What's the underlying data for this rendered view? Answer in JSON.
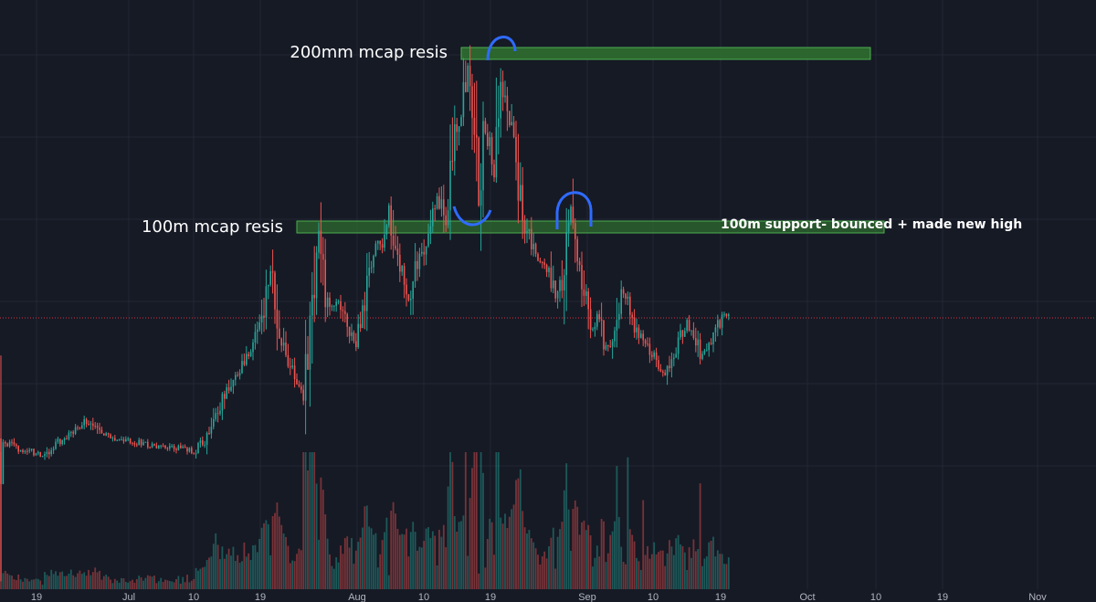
{
  "chart_data": {
    "type": "candlestick",
    "title": "",
    "xlabel": "",
    "ylabel": "",
    "grid": true,
    "x_tick_labels": [
      "19",
      "Jul",
      "10",
      "19",
      "Aug",
      "10",
      "19",
      "Sep",
      "10",
      "19",
      "Oct",
      "10",
      "19",
      "Nov"
    ],
    "annotations": {
      "resistance_200": "200mm mcap resis",
      "resistance_100": "100m mcap resis",
      "support_100": "100m support- bounced + made new high"
    },
    "price_path": [
      [
        0,
        480
      ],
      [
        16,
        490
      ],
      [
        32,
        494
      ],
      [
        48,
        498
      ],
      [
        64,
        484
      ],
      [
        80,
        472
      ],
      [
        94,
        460
      ],
      [
        110,
        476
      ],
      [
        130,
        480
      ],
      [
        150,
        484
      ],
      [
        170,
        488
      ],
      [
        190,
        490
      ],
      [
        212,
        494
      ],
      [
        226,
        480
      ],
      [
        236,
        455
      ],
      [
        246,
        430
      ],
      [
        256,
        412
      ],
      [
        266,
        398
      ],
      [
        276,
        382
      ],
      [
        286,
        352
      ],
      [
        296,
        296
      ],
      [
        306,
        362
      ],
      [
        314,
        392
      ],
      [
        322,
        410
      ],
      [
        332,
        430
      ],
      [
        340,
        358
      ],
      [
        348,
        248
      ],
      [
        356,
        322
      ],
      [
        364,
        340
      ],
      [
        372,
        330
      ],
      [
        380,
        356
      ],
      [
        388,
        378
      ],
      [
        396,
        352
      ],
      [
        404,
        304
      ],
      [
        412,
        272
      ],
      [
        420,
        262
      ],
      [
        426,
        222
      ],
      [
        432,
        270
      ],
      [
        440,
        300
      ],
      [
        448,
        330
      ],
      [
        456,
        290
      ],
      [
        464,
        272
      ],
      [
        472,
        238
      ],
      [
        478,
        212
      ],
      [
        484,
        230
      ],
      [
        490,
        258
      ],
      [
        496,
        160
      ],
      [
        504,
        122
      ],
      [
        512,
        72
      ],
      [
        518,
        120
      ],
      [
        524,
        228
      ],
      [
        530,
        140
      ],
      [
        536,
        160
      ],
      [
        542,
        196
      ],
      [
        548,
        80
      ],
      [
        556,
        122
      ],
      [
        562,
        150
      ],
      [
        568,
        208
      ],
      [
        574,
        244
      ],
      [
        580,
        262
      ],
      [
        586,
        282
      ],
      [
        594,
        290
      ],
      [
        602,
        298
      ],
      [
        608,
        330
      ],
      [
        616,
        300
      ],
      [
        624,
        222
      ],
      [
        632,
        282
      ],
      [
        640,
        318
      ],
      [
        648,
        358
      ],
      [
        656,
        346
      ],
      [
        664,
        384
      ],
      [
        672,
        364
      ],
      [
        680,
        320
      ],
      [
        688,
        330
      ],
      [
        696,
        360
      ],
      [
        704,
        370
      ],
      [
        712,
        384
      ],
      [
        720,
        400
      ],
      [
        728,
        410
      ],
      [
        736,
        392
      ],
      [
        744,
        370
      ],
      [
        752,
        350
      ],
      [
        760,
        368
      ],
      [
        768,
        392
      ],
      [
        776,
        380
      ],
      [
        784,
        360
      ],
      [
        792,
        344
      ],
      [
        800,
        347
      ]
    ]
  }
}
